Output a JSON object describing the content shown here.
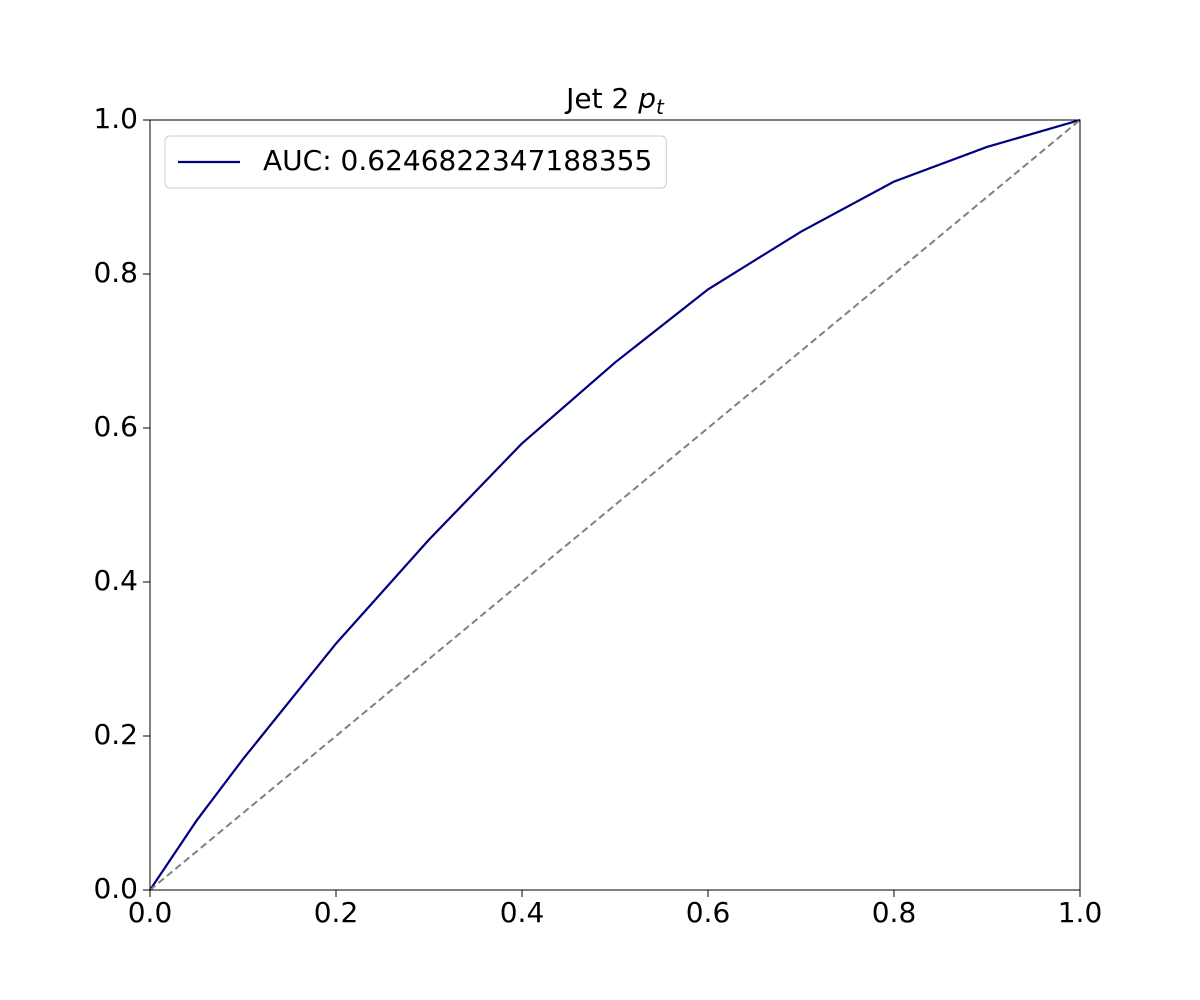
{
  "chart_data": {
    "type": "line",
    "title": {
      "text": "Jet 2",
      "symbol": "p",
      "subscript": "t"
    },
    "xlim": [
      0,
      1
    ],
    "ylim": [
      0,
      1
    ],
    "xticks": [
      {
        "value": 0,
        "label": "0.0"
      },
      0.2,
      0.4,
      0.6,
      0.8,
      {
        "value": 1,
        "label": "1.0"
      }
    ],
    "yticks": [
      {
        "value": 0,
        "label": "0.0"
      },
      0.2,
      0.4,
      0.6,
      0.8,
      {
        "value": 1,
        "label": "1.0"
      }
    ],
    "legend": "upper left",
    "series": [
      {
        "name": "AUC: 0.6246822347188355",
        "color": "#000080",
        "style": "solid",
        "x": [
          0,
          0.05,
          0.1,
          0.2,
          0.3,
          0.4,
          0.5,
          0.6,
          0.7,
          0.8,
          0.9,
          1
        ],
        "values": [
          0,
          0.09,
          0.17,
          0.32,
          0.455,
          0.58,
          0.685,
          0.78,
          0.855,
          0.92,
          0.965,
          1
        ]
      },
      {
        "color": "#808080",
        "style": "dashed",
        "x": [
          0,
          1
        ],
        "values": [
          0,
          1
        ]
      }
    ]
  }
}
